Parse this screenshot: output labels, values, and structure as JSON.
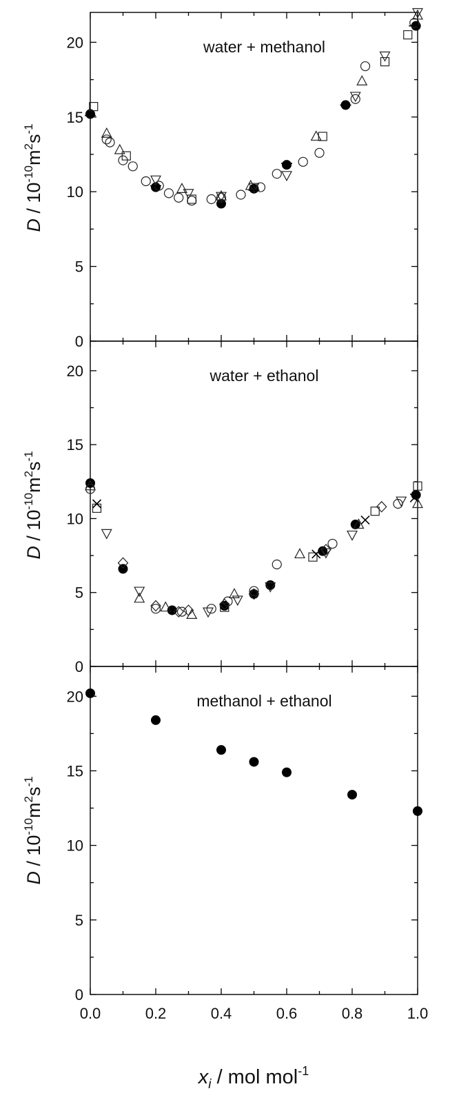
{
  "chart_data": {
    "type": "scatter",
    "xlabel": "x_i / mol mol^-1",
    "xlabel_parts": {
      "var": "x",
      "sub": "i",
      "rest": " / mol mol",
      "sup": "-1"
    },
    "ylabel_parts": {
      "var": "D",
      "mid": " / 10",
      "exp1": "-10",
      "unit": "m",
      "exp2": "2",
      "unit2": "s",
      "exp3": "-1"
    },
    "x_ticks": [
      "0.0",
      "0.2",
      "0.4",
      "0.6",
      "0.8",
      "1.0"
    ],
    "y_ticks": [
      "0",
      "5",
      "10",
      "15",
      "20"
    ],
    "xlim": [
      0,
      1
    ],
    "panels": [
      {
        "id": "water-methanol",
        "title": "water + methanol",
        "ylim": [
          0,
          22
        ],
        "series": [
          {
            "marker": "filled-circle",
            "points": [
              [
                0.0,
                15.2
              ],
              [
                0.2,
                10.3
              ],
              [
                0.4,
                9.2
              ],
              [
                0.5,
                10.2
              ],
              [
                0.6,
                11.8
              ],
              [
                0.78,
                15.8
              ],
              [
                0.995,
                21.1
              ]
            ]
          },
          {
            "marker": "open-circle",
            "points": [
              [
                0.05,
                13.5
              ],
              [
                0.06,
                13.3
              ],
              [
                0.1,
                12.1
              ],
              [
                0.13,
                11.7
              ],
              [
                0.17,
                10.7
              ],
              [
                0.21,
                10.4
              ],
              [
                0.24,
                9.9
              ],
              [
                0.27,
                9.6
              ],
              [
                0.31,
                9.4
              ],
              [
                0.37,
                9.5
              ],
              [
                0.4,
                9.6
              ],
              [
                0.46,
                9.8
              ],
              [
                0.52,
                10.3
              ],
              [
                0.57,
                11.2
              ],
              [
                0.65,
                12.0
              ],
              [
                0.7,
                12.6
              ],
              [
                0.81,
                16.2
              ],
              [
                0.84,
                18.4
              ],
              [
                0.99,
                21.3
              ]
            ]
          },
          {
            "marker": "open-triangle-up",
            "points": [
              [
                0.05,
                13.9
              ],
              [
                0.09,
                12.8
              ],
              [
                0.28,
                10.2
              ],
              [
                0.4,
                9.7
              ],
              [
                0.49,
                10.4
              ],
              [
                0.69,
                13.7
              ],
              [
                0.83,
                17.4
              ],
              [
                1.0,
                21.8
              ]
            ]
          },
          {
            "marker": "open-triangle-down",
            "points": [
              [
                0.2,
                10.8
              ],
              [
                0.3,
                9.9
              ],
              [
                0.4,
                9.7
              ],
              [
                0.5,
                10.3
              ],
              [
                0.6,
                11.1
              ],
              [
                0.81,
                16.4
              ],
              [
                0.9,
                19.1
              ],
              [
                1.0,
                22.0
              ]
            ]
          },
          {
            "marker": "open-square",
            "points": [
              [
                0.01,
                15.7
              ],
              [
                0.11,
                12.4
              ],
              [
                0.31,
                9.5
              ],
              [
                0.71,
                13.7
              ],
              [
                0.9,
                18.7
              ],
              [
                0.97,
                20.5
              ]
            ]
          },
          {
            "marker": "dash",
            "points": [
              [
                0.0,
                15.1
              ],
              [
                0.2,
                10.4
              ],
              [
                0.5,
                10.1
              ],
              [
                0.6,
                11.9
              ],
              [
                0.78,
                15.8
              ],
              [
                0.99,
                21.1
              ]
            ]
          }
        ]
      },
      {
        "id": "water-ethanol",
        "title": "water + ethanol",
        "ylim": [
          0,
          22
        ],
        "series": [
          {
            "marker": "filled-circle",
            "points": [
              [
                0.0,
                12.4
              ],
              [
                0.1,
                6.6
              ],
              [
                0.25,
                3.8
              ],
              [
                0.41,
                4.1
              ],
              [
                0.5,
                4.9
              ],
              [
                0.55,
                5.5
              ],
              [
                0.71,
                7.8
              ],
              [
                0.81,
                9.6
              ],
              [
                0.995,
                11.6
              ]
            ]
          },
          {
            "marker": "open-circle",
            "points": [
              [
                0.0,
                12.0
              ],
              [
                0.2,
                3.9
              ],
              [
                0.28,
                3.7
              ],
              [
                0.37,
                3.9
              ],
              [
                0.42,
                4.4
              ],
              [
                0.5,
                5.1
              ],
              [
                0.57,
                6.9
              ],
              [
                0.74,
                8.3
              ],
              [
                0.94,
                11.0
              ]
            ]
          },
          {
            "marker": "open-triangle-up",
            "points": [
              [
                0.0,
                12.2
              ],
              [
                0.15,
                4.6
              ],
              [
                0.23,
                4.0
              ],
              [
                0.31,
                3.5
              ],
              [
                0.44,
                4.9
              ],
              [
                0.64,
                7.6
              ],
              [
                0.82,
                9.6
              ],
              [
                1.0,
                11.0
              ]
            ]
          },
          {
            "marker": "open-triangle-down",
            "points": [
              [
                0.05,
                9.0
              ],
              [
                0.15,
                5.1
              ],
              [
                0.36,
                3.7
              ],
              [
                0.45,
                4.5
              ],
              [
                0.55,
                5.4
              ],
              [
                0.72,
                7.7
              ],
              [
                0.8,
                8.9
              ],
              [
                0.95,
                11.2
              ]
            ]
          },
          {
            "marker": "open-diamond",
            "points": [
              [
                0.1,
                7.0
              ],
              [
                0.2,
                4.1
              ],
              [
                0.27,
                3.7
              ],
              [
                0.3,
                3.8
              ],
              [
                0.41,
                4.2
              ],
              [
                0.5,
                4.9
              ],
              [
                0.72,
                7.9
              ],
              [
                0.89,
                10.8
              ]
            ]
          },
          {
            "marker": "open-square",
            "points": [
              [
                0.02,
                10.7
              ],
              [
                0.41,
                4.0
              ],
              [
                0.68,
                7.4
              ],
              [
                0.87,
                10.5
              ],
              [
                1.0,
                12.2
              ]
            ]
          },
          {
            "marker": "cross",
            "points": [
              [
                0.02,
                11.0
              ],
              [
                0.69,
                7.6
              ],
              [
                0.84,
                9.9
              ],
              [
                0.99,
                11.4
              ]
            ]
          }
        ]
      },
      {
        "id": "methanol-ethanol",
        "title": "methanol + ethanol",
        "ylim": [
          0,
          22
        ],
        "series": [
          {
            "marker": "filled-circle",
            "points": [
              [
                0.0,
                20.2
              ],
              [
                0.2,
                18.4
              ],
              [
                0.4,
                16.4
              ],
              [
                0.5,
                15.6
              ],
              [
                0.6,
                14.9
              ],
              [
                0.8,
                13.4
              ],
              [
                1.0,
                12.3
              ]
            ]
          }
        ]
      }
    ]
  }
}
